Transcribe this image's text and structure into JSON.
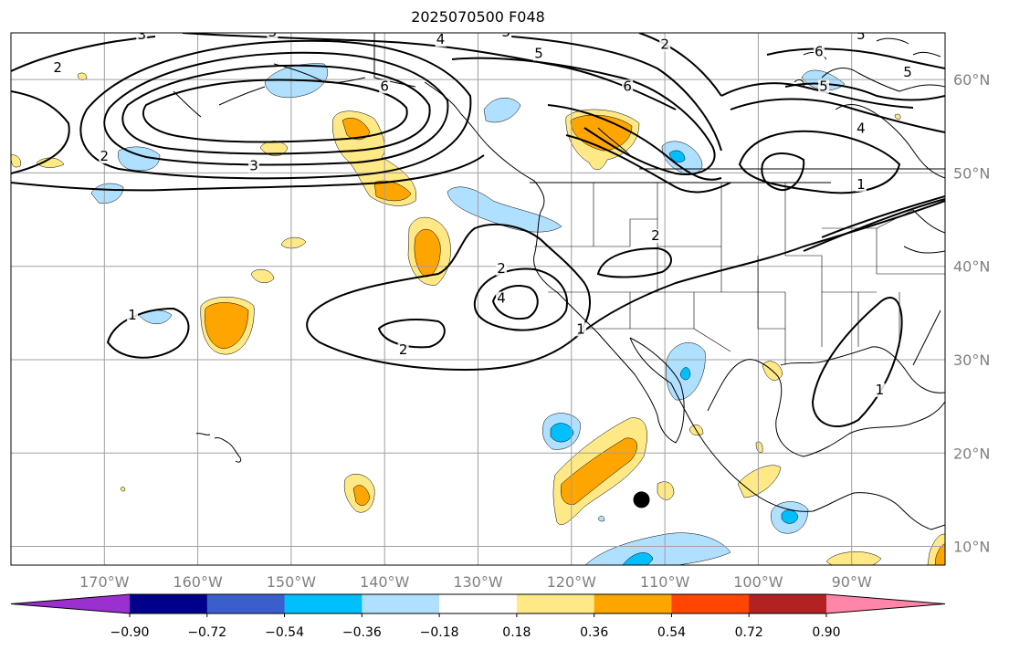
{
  "title": "2025070500 F048",
  "map": {
    "lon_range": [
      -180,
      -80
    ],
    "lat_range": [
      8,
      65
    ],
    "lon_ticks": [
      {
        "value": -170,
        "label": "170°W"
      },
      {
        "value": -160,
        "label": "160°W"
      },
      {
        "value": -150,
        "label": "150°W"
      },
      {
        "value": -140,
        "label": "140°W"
      },
      {
        "value": -130,
        "label": "130°W"
      },
      {
        "value": -120,
        "label": "120°W"
      },
      {
        "value": -110,
        "label": "110°W"
      },
      {
        "value": -100,
        "label": "100°W"
      },
      {
        "value": -90,
        "label": "90°W"
      }
    ],
    "lat_ticks": [
      {
        "value": 10,
        "label": "10°N"
      },
      {
        "value": 20,
        "label": "20°N"
      },
      {
        "value": 30,
        "label": "30°N"
      },
      {
        "value": 40,
        "label": "40°N"
      },
      {
        "value": 50,
        "label": "50°N"
      },
      {
        "value": 60,
        "label": "60°N"
      }
    ],
    "grid": true,
    "marker": {
      "lon": -112.5,
      "lat": 15,
      "color": "#000000"
    }
  },
  "colorbar": {
    "colors": [
      "#9b30d0",
      "#00008b",
      "#3a5fcd",
      "#00bfff",
      "#b0e0ff",
      "#ffffff",
      "#ffe986",
      "#ffa500",
      "#ff4500",
      "#b22222",
      "#ff86a8"
    ],
    "labels": [
      "−0.90",
      "−0.72",
      "−0.54",
      "−0.36",
      "−0.18",
      "0.18",
      "0.36",
      "0.54",
      "0.72",
      "0.90"
    ]
  },
  "contour_labels": [
    {
      "text": "2",
      "lon": -175,
      "lat": 61
    },
    {
      "text": "2",
      "lon": -170,
      "lat": 51.5
    },
    {
      "text": "3",
      "lon": -166,
      "lat": 64.5
    },
    {
      "text": "3",
      "lon": -154,
      "lat": 50.5
    },
    {
      "text": "3",
      "lon": -152,
      "lat": 64.8
    },
    {
      "text": "6",
      "lon": -140,
      "lat": 59
    },
    {
      "text": "4",
      "lon": -134,
      "lat": 64
    },
    {
      "text": "3",
      "lon": -127,
      "lat": 64.8
    },
    {
      "text": "5",
      "lon": -123.5,
      "lat": 62.5
    },
    {
      "text": "2",
      "lon": -110,
      "lat": 63.5
    },
    {
      "text": "6",
      "lon": -114,
      "lat": 59
    },
    {
      "text": "6",
      "lon": -93.5,
      "lat": 62.7
    },
    {
      "text": "5",
      "lon": -84,
      "lat": 60.5
    },
    {
      "text": "5",
      "lon": -93,
      "lat": 59
    },
    {
      "text": "4",
      "lon": -89,
      "lat": 54.5
    },
    {
      "text": "1",
      "lon": -89,
      "lat": 48.5
    },
    {
      "text": "2",
      "lon": -111,
      "lat": 43
    },
    {
      "text": "2",
      "lon": -127.5,
      "lat": 39.5
    },
    {
      "text": "4",
      "lon": -127.5,
      "lat": 36.3
    },
    {
      "text": "2",
      "lon": -138,
      "lat": 30.8
    },
    {
      "text": "1",
      "lon": -119,
      "lat": 33
    },
    {
      "text": "1",
      "lon": -167,
      "lat": 34.5
    },
    {
      "text": "1",
      "lon": -87,
      "lat": 26.5
    },
    {
      "text": "5",
      "lon": -89,
      "lat": 64.5
    }
  ]
}
